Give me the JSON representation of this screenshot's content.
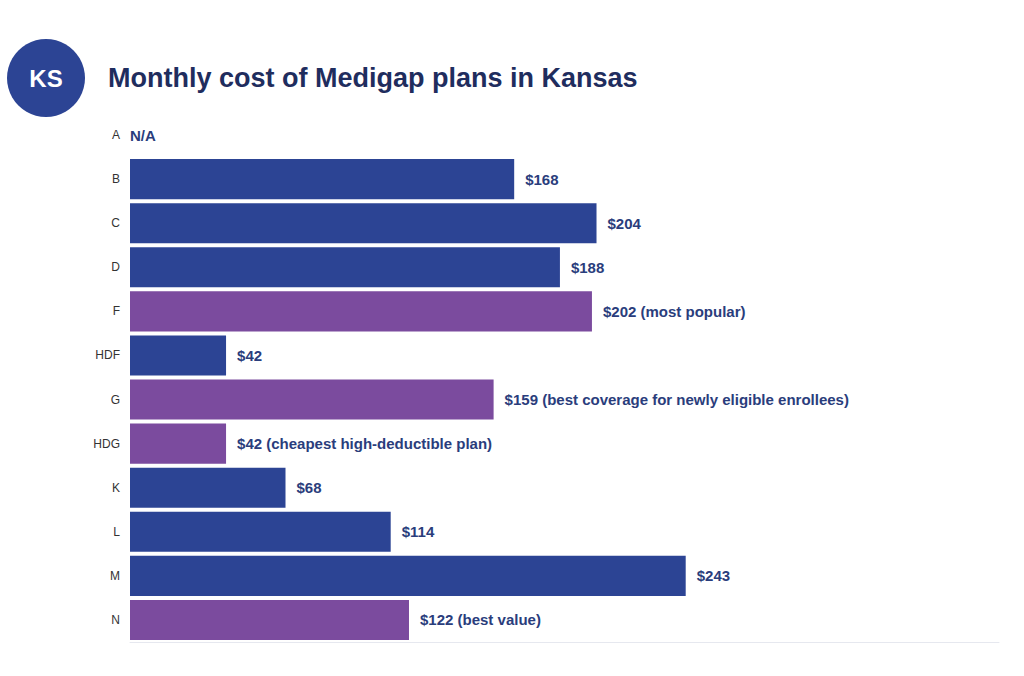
{
  "chart_data": {
    "type": "bar",
    "orientation": "horizontal",
    "badge": "KS",
    "title": "Monthly cost of Medigap plans in Kansas",
    "categories": [
      "A",
      "B",
      "C",
      "D",
      "F",
      "HDF",
      "G",
      "HDG",
      "K",
      "L",
      "M",
      "N"
    ],
    "values": [
      null,
      168,
      204,
      188,
      202,
      42,
      159,
      42,
      68,
      114,
      243,
      122
    ],
    "value_labels": [
      "N/A",
      "$168",
      "$204",
      "$188",
      "$202 (most popular)",
      "$42",
      "$159 (best coverage for newly eligible enrollees)",
      "$42 (cheapest high-deductible plan)",
      "$68",
      "$114",
      "$243",
      "$122 (best value)"
    ],
    "colors": [
      "#2c4494",
      "#2c4494",
      "#2c4494",
      "#2c4494",
      "#7b4b9e",
      "#2c4494",
      "#7b4b9e",
      "#7b4b9e",
      "#2c4494",
      "#2c4494",
      "#2c4494",
      "#7b4b9e"
    ],
    "xlim": [
      0,
      380
    ],
    "data_labels": true,
    "tick_labels": "y",
    "grid": false
  }
}
